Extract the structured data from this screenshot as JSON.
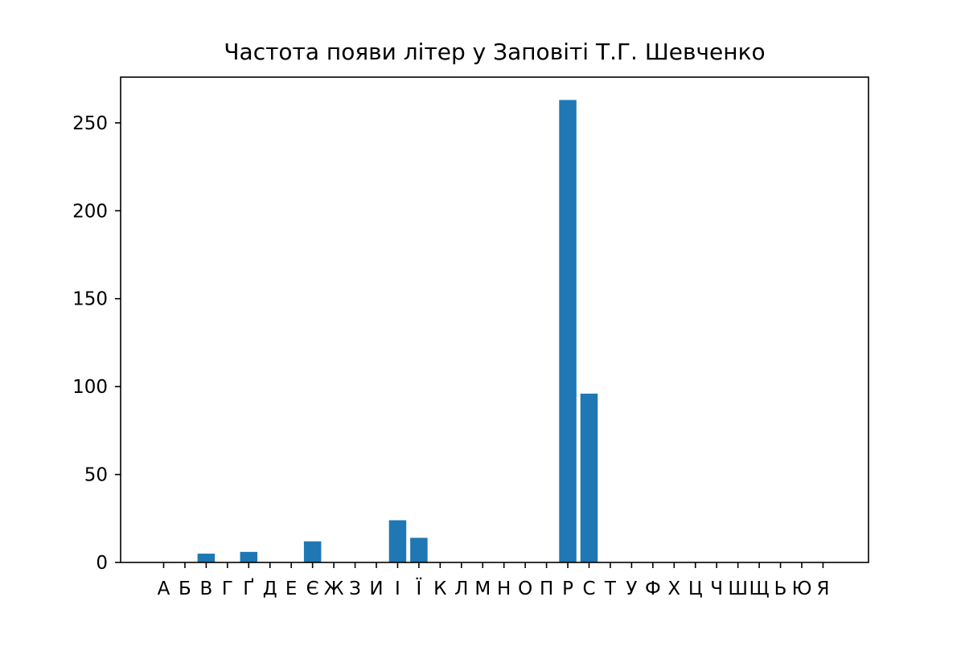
{
  "colors": {
    "bar": "#1f77b4",
    "axis": "#000000",
    "background": "#ffffff"
  },
  "chart_data": {
    "type": "bar",
    "title": "Частота появи літер у Заповіті Т.Г. Шевченко",
    "xlabel": "",
    "ylabel": "",
    "ylim": [
      0,
      276
    ],
    "yticks": [
      0,
      50,
      100,
      150,
      200,
      250
    ],
    "grid": false,
    "categories": [
      "А",
      "Б",
      "В",
      "Г",
      "Ґ",
      "Д",
      "Е",
      "Є",
      "Ж",
      "З",
      "И",
      "І",
      "Ї",
      "К",
      "Л",
      "М",
      "Н",
      "О",
      "П",
      "Р",
      "С",
      "Т",
      "У",
      "Ф",
      "Х",
      "Ц",
      "Ч",
      "Ш",
      "Щ",
      "Ь",
      "Ю",
      "Я"
    ],
    "values": [
      0,
      0,
      5,
      0,
      6,
      0,
      0,
      12,
      0,
      0,
      0,
      24,
      14,
      0,
      0,
      0,
      0,
      0,
      0,
      263,
      96,
      0,
      0,
      0,
      0,
      0,
      0,
      0,
      0,
      0,
      0,
      0
    ]
  }
}
